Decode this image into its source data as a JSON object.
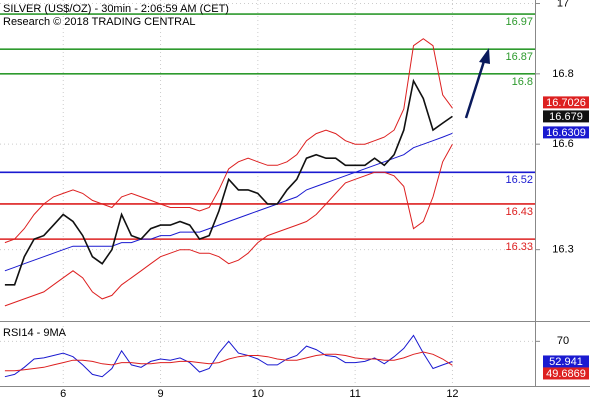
{
  "chart_data": [
    {
      "type": "line",
      "title": "SILVER (US$/OZ) - 30min - 2:06:59 AM (CET)",
      "subtitle": "Research © 2018 TRADING CENTRAL",
      "categories": [
        null,
        null,
        null,
        null,
        null,
        null,
        "6",
        null,
        null,
        null,
        null,
        null,
        null,
        null,
        null,
        null,
        "9",
        null,
        null,
        null,
        null,
        null,
        null,
        null,
        null,
        null,
        "10",
        null,
        null,
        null,
        null,
        null,
        null,
        null,
        null,
        null,
        "11",
        null,
        null,
        null,
        null,
        null,
        null,
        null,
        null,
        null,
        "12"
      ],
      "ylim": [
        16.1,
        17.01
      ],
      "yticks": [
        16.3,
        16.6,
        16.8,
        17.0
      ],
      "grid": true,
      "series": [
        {
          "color": "#dd2020",
          "values": [
            16.32,
            16.33,
            16.36,
            16.4,
            16.43,
            16.45,
            16.46,
            16.47,
            16.46,
            16.44,
            16.43,
            16.42,
            16.45,
            16.46,
            16.45,
            16.44,
            16.43,
            16.42,
            16.42,
            16.42,
            16.41,
            16.42,
            16.47,
            16.53,
            16.55,
            16.56,
            16.55,
            16.54,
            16.54,
            16.55,
            16.57,
            16.61,
            16.63,
            16.64,
            16.63,
            16.61,
            16.6,
            16.6,
            16.61,
            16.62,
            16.64,
            16.7,
            16.88,
            16.9,
            16.88,
            16.74,
            16.7026
          ]
        },
        {
          "color": "#dd2020",
          "values": [
            16.14,
            16.15,
            16.16,
            16.17,
            16.18,
            16.2,
            16.22,
            16.24,
            16.22,
            16.18,
            16.16,
            16.17,
            16.2,
            16.22,
            16.24,
            16.26,
            16.28,
            16.29,
            16.3,
            16.3,
            16.29,
            16.29,
            16.28,
            16.26,
            16.27,
            16.29,
            16.32,
            16.34,
            16.35,
            16.36,
            16.37,
            16.38,
            16.4,
            16.43,
            16.46,
            16.49,
            16.5,
            16.51,
            16.52,
            16.52,
            16.51,
            16.48,
            16.36,
            16.38,
            16.45,
            16.55,
            16.6
          ]
        },
        {
          "color": "#1a1ad0",
          "values": [
            16.24,
            16.25,
            16.26,
            16.27,
            16.28,
            16.29,
            16.3,
            16.31,
            16.31,
            16.31,
            16.31,
            16.31,
            16.32,
            16.32,
            16.33,
            16.33,
            16.34,
            16.34,
            16.35,
            16.35,
            16.35,
            16.36,
            16.37,
            16.38,
            16.39,
            16.4,
            16.41,
            16.42,
            16.43,
            16.44,
            16.45,
            16.47,
            16.48,
            16.49,
            16.5,
            16.51,
            16.52,
            16.53,
            16.54,
            16.55,
            16.56,
            16.57,
            16.59,
            16.6,
            16.61,
            16.62,
            16.6309
          ]
        },
        {
          "color": "#111111",
          "values": [
            16.2,
            16.2,
            16.28,
            16.33,
            16.34,
            16.37,
            16.4,
            16.38,
            16.34,
            16.28,
            16.26,
            16.3,
            16.4,
            16.34,
            16.33,
            16.36,
            16.37,
            16.37,
            16.38,
            16.37,
            16.33,
            16.34,
            16.41,
            16.5,
            16.47,
            16.47,
            16.46,
            16.43,
            16.43,
            16.47,
            16.5,
            16.56,
            16.57,
            16.56,
            16.56,
            16.54,
            16.54,
            16.54,
            16.56,
            16.54,
            16.57,
            16.64,
            16.78,
            16.73,
            16.64,
            16.66,
            16.679
          ]
        }
      ],
      "levels": [
        {
          "value": 16.97,
          "color": "#2e9a2e"
        },
        {
          "value": 16.87,
          "color": "#2e9a2e"
        },
        {
          "value": 16.8,
          "color": "#2e9a2e"
        },
        {
          "value": 16.52,
          "color": "#1a1ad0"
        },
        {
          "value": 16.43,
          "color": "#dd2020"
        },
        {
          "value": 16.33,
          "color": "#dd2020"
        }
      ]
    },
    {
      "type": "line",
      "title": "RSI14 - 9MA",
      "ylim": [
        33,
        83
      ],
      "yticks": [
        70
      ],
      "series": [
        {
          "color": "#1a1ad0",
          "values": [
            40,
            42,
            48,
            55,
            56,
            58,
            60,
            57,
            50,
            42,
            40,
            47,
            62,
            50,
            48,
            53,
            55,
            54,
            56,
            52,
            44,
            47,
            60,
            70,
            60,
            58,
            55,
            50,
            50,
            55,
            58,
            66,
            63,
            58,
            57,
            52,
            52,
            53,
            56,
            51,
            57,
            64,
            75,
            60,
            47,
            50,
            52.941
          ]
        },
        {
          "color": "#dd2020",
          "values": [
            45,
            45,
            46,
            47,
            48,
            50,
            52,
            54,
            54,
            53,
            51,
            50,
            52,
            52,
            51,
            51,
            52,
            52,
            53,
            53,
            52,
            51,
            52,
            55,
            57,
            58,
            58,
            57,
            55,
            54,
            54,
            56,
            58,
            59,
            59,
            58,
            56,
            55,
            55,
            54,
            54,
            56,
            59,
            61,
            59,
            55,
            49.6869
          ]
        }
      ]
    }
  ]
}
